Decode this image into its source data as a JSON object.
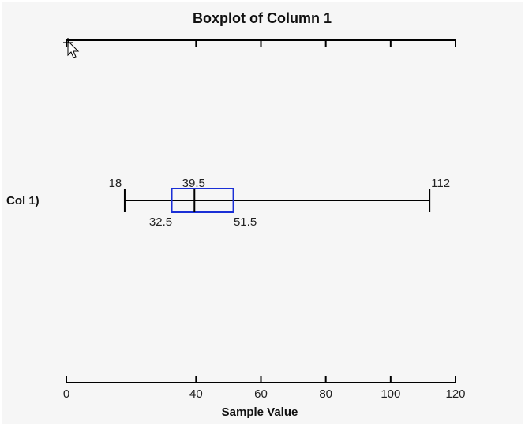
{
  "chart_data": {
    "type": "boxplot",
    "title": "Boxplot of Column 1",
    "xlabel": "Sample Value",
    "category_label": "Col 1)",
    "xlim": [
      0,
      120
    ],
    "ticks": [
      0,
      40,
      60,
      80,
      100,
      120
    ],
    "top_axis": true,
    "grid": false,
    "stats": {
      "min": 18,
      "q1": 32.5,
      "median": 39.5,
      "q3": 51.5,
      "max": 112
    },
    "stat_labels": {
      "min": "18",
      "q1": "32.5",
      "median": "39.5",
      "q3": "51.5",
      "max": "112"
    },
    "box_color": "#1a2fd6",
    "line_color": "#000000"
  }
}
